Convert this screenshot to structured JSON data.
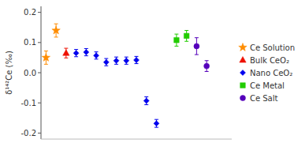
{
  "chart_data": {
    "type": "scatter",
    "y_label": "δ¹⁴²Ce (‰)",
    "ylim": [
      -0.22,
      0.22
    ],
    "yticks": [
      -0.2,
      -0.1,
      {
        "value": 0,
        "label": "0.0"
      },
      0.1,
      0.2
    ],
    "xlim": [
      0.5,
      19.5
    ],
    "tick_labels": "y",
    "grid": false,
    "legend": "right",
    "series": [
      {
        "name": "Ce Solution",
        "color": "#FF8C00",
        "marker": "star",
        "x": [
          1,
          2
        ],
        "values": [
          0.05,
          0.14
        ],
        "errors": [
          0.022,
          0.022
        ]
      },
      {
        "name": "Bulk CeO₂",
        "color": "#EE1100",
        "marker": "triangle",
        "x": [
          3
        ],
        "values": [
          0.065
        ],
        "errors": [
          0.016
        ]
      },
      {
        "name": "Nano CeO₂",
        "color": "#0000EE",
        "marker": "diamond",
        "x": [
          4,
          5,
          6,
          7,
          8,
          9,
          10,
          11,
          12
        ],
        "values": [
          0.065,
          0.068,
          0.057,
          0.035,
          0.04,
          0.04,
          0.042,
          -0.093,
          -0.168
        ],
        "errors": [
          0.012,
          0.012,
          0.012,
          0.012,
          0.012,
          0.012,
          0.012,
          0.013,
          0.013
        ]
      },
      {
        "name": "Ce Metal",
        "color": "#22CC00",
        "marker": "square",
        "x": [
          14,
          15
        ],
        "values": [
          0.108,
          0.122
        ],
        "errors": [
          0.02,
          0.018
        ]
      },
      {
        "name": "Ce Salt",
        "color": "#5500BB",
        "marker": "circle",
        "x": [
          16,
          17
        ],
        "values": [
          0.088,
          0.022
        ],
        "errors": [
          0.028,
          0.018
        ]
      }
    ]
  }
}
